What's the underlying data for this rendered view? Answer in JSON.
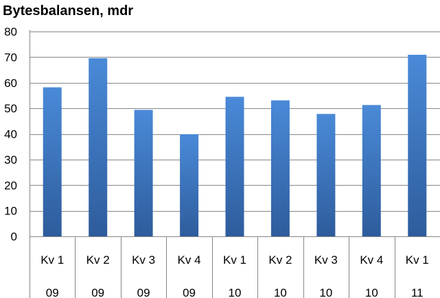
{
  "chart_data": {
    "type": "bar",
    "title": "Bytesbalansen, mdr",
    "xlabel": "",
    "ylabel": "",
    "ylim": [
      0,
      80
    ],
    "yticks": [
      0,
      10,
      20,
      30,
      40,
      50,
      60,
      70,
      80
    ],
    "grid": true,
    "legend": "none",
    "categories": [
      {
        "quarter": "Kv 1",
        "year": "09"
      },
      {
        "quarter": "Kv 2",
        "year": "09"
      },
      {
        "quarter": "Kv 3",
        "year": "09"
      },
      {
        "quarter": "Kv 4",
        "year": "09"
      },
      {
        "quarter": "Kv 1",
        "year": "10"
      },
      {
        "quarter": "Kv 2",
        "year": "10"
      },
      {
        "quarter": "Kv 3",
        "year": "10"
      },
      {
        "quarter": "Kv 4",
        "year": "10"
      },
      {
        "quarter": "Kv 1",
        "year": "11"
      }
    ],
    "values": [
      58.2,
      69.6,
      49.4,
      39.9,
      54.5,
      53.1,
      47.8,
      51.3,
      70.9
    ],
    "colors": {
      "bar_light": "#4a8ad8",
      "bar_dark": "#2e5c9c",
      "gridline": "#868686",
      "axis": "#868686"
    }
  }
}
